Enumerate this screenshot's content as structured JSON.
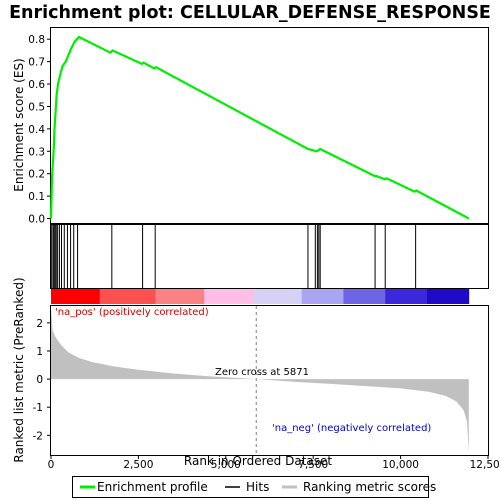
{
  "chart_data": {
    "type": "line",
    "title": "Enrichment plot: CELLULAR_DEFENSE_RESPONSE",
    "top_panel": {
      "ylabel": "Enrichment score (ES)",
      "ylim": [
        -0.02,
        0.85
      ],
      "yticks": [
        0.0,
        0.1,
        0.2,
        0.3,
        0.4,
        0.5,
        0.6,
        0.7,
        0.8
      ],
      "ytick_labels": [
        "0.0",
        "0.1",
        "0.2",
        "0.3",
        "0.4",
        "0.5",
        "0.6",
        "0.7",
        "0.8"
      ],
      "series": [
        {
          "name": "Enrichment profile",
          "color": "#00ee00",
          "x": [
            0,
            30,
            60,
            80,
            100,
            130,
            160,
            200,
            260,
            330,
            420,
            500,
            580,
            680,
            800,
            1700,
            1760,
            2600,
            2650,
            2950,
            3000,
            7350,
            7600,
            7650,
            7700,
            9250,
            9300,
            9550,
            9600,
            10400,
            10450,
            11950
          ],
          "y": [
            0.0,
            0.18,
            0.26,
            0.32,
            0.4,
            0.47,
            0.55,
            0.6,
            0.64,
            0.68,
            0.7,
            0.73,
            0.76,
            0.79,
            0.81,
            0.74,
            0.75,
            0.69,
            0.695,
            0.67,
            0.675,
            0.31,
            0.3,
            0.305,
            0.31,
            0.19,
            0.19,
            0.175,
            0.18,
            0.12,
            0.125,
            0.0
          ]
        }
      ]
    },
    "hits": [
      20,
      60,
      90,
      120,
      150,
      190,
      240,
      300,
      380,
      470,
      560,
      650,
      760,
      1740,
      2620,
      2980,
      7350,
      7560,
      7620,
      7660,
      7700,
      9270,
      9560,
      10430
    ],
    "bottom_panel": {
      "ylabel": "Ranked list metric (PreRanked)",
      "xlabel": "Rank in Ordered Dataset",
      "ylim": [
        -2.7,
        2.6
      ],
      "yticks": [
        -2,
        -1,
        0,
        1,
        2
      ],
      "ytick_labels": [
        "-2",
        "-1",
        "0",
        "1",
        "2"
      ],
      "xlim": [
        0,
        12500
      ],
      "xticks": [
        0,
        2500,
        5000,
        7500,
        10000,
        12500
      ],
      "xtick_labels": [
        "0",
        "2,500",
        "5,000",
        "7,500",
        "10,000",
        "12,500"
      ],
      "metric_x": [
        0,
        50,
        150,
        300,
        500,
        800,
        1200,
        1800,
        2500,
        3500,
        4500,
        5871,
        7000,
        8000,
        9000,
        10000,
        10800,
        11300,
        11600,
        11800,
        11900,
        11950
      ],
      "metric_y": [
        2.5,
        1.7,
        1.45,
        1.2,
        0.95,
        0.75,
        0.6,
        0.45,
        0.33,
        0.2,
        0.1,
        0.0,
        -0.1,
        -0.17,
        -0.25,
        -0.33,
        -0.45,
        -0.6,
        -0.8,
        -1.1,
        -1.5,
        -2.6
      ],
      "zero_cross_label": "Zero cross at 5871",
      "zero_cross": 5871,
      "pos_label": "'na_pos' (positively correlated)",
      "neg_label": "'na_neg' (negatively correlated)"
    },
    "n_genes": 11950,
    "legend": [
      "Enrichment profile",
      "Hits",
      "Ranking metric scores"
    ],
    "legend_placement": "bottom",
    "colors": {
      "profile": "#00ee00",
      "hits": "#000000",
      "metric_fill": "#c0c0c0",
      "pos_text": "#cc0000",
      "neg_text": "#0000cc"
    }
  }
}
